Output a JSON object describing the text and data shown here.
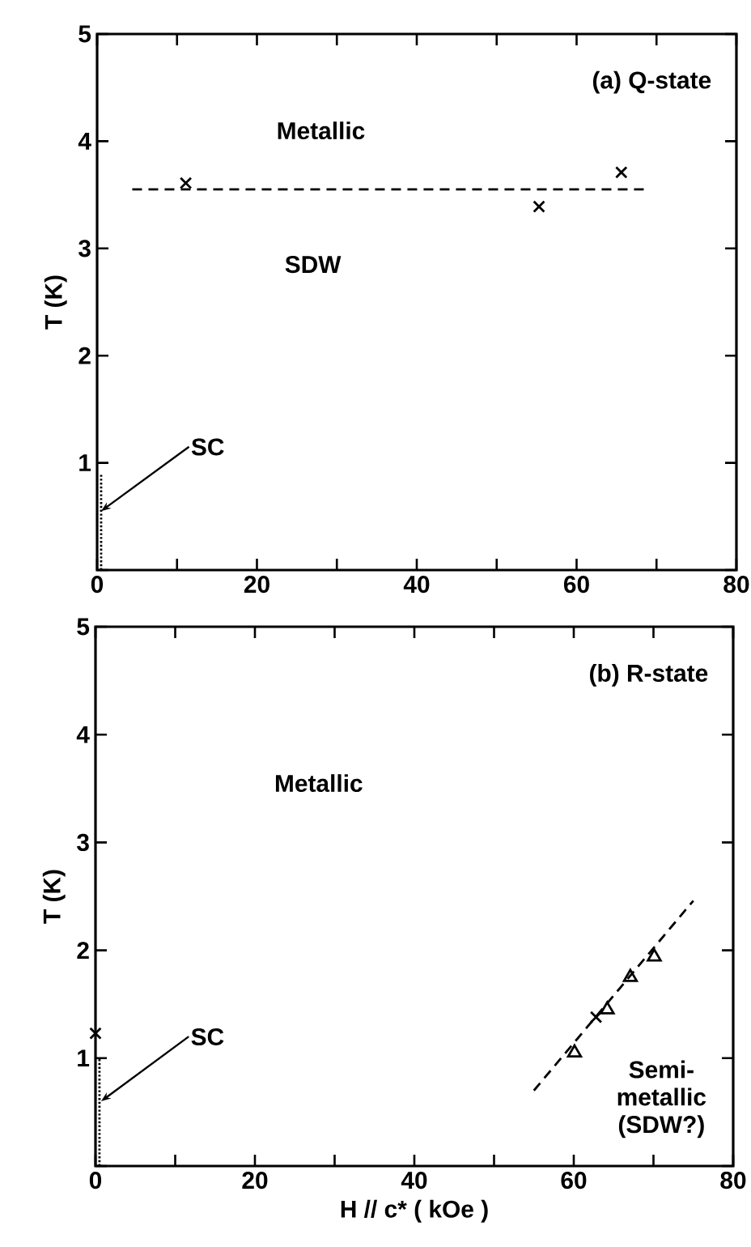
{
  "chart_data": [
    {
      "type": "scatter",
      "title": "(a) Q-state",
      "ylabel": "T (K)",
      "xlim": [
        0,
        80
      ],
      "ylim": [
        0,
        5
      ],
      "xticks": [
        0,
        {
          "value": 10,
          "label": null
        },
        20,
        {
          "value": 30,
          "label": null
        },
        40,
        {
          "value": 50,
          "label": null
        },
        60,
        {
          "value": 70,
          "label": null
        },
        80
      ],
      "yticks": [
        {
          "value": 0,
          "label": null
        },
        1,
        2,
        3,
        4,
        5
      ],
      "series": [
        {
          "marker": "cross",
          "color": "#000000",
          "x": [
            11.1,
            55.3,
            65.6
          ],
          "values": [
            3.61,
            3.39,
            3.71
          ]
        },
        {
          "type": "line",
          "line_style": "dashed",
          "color": "#000000",
          "x": [
            4.4,
            68.8
          ],
          "values": [
            3.55,
            3.55
          ]
        },
        {
          "type": "line",
          "line_style": "dotted",
          "color": "#000000",
          "x": [
            0.5,
            0.5
          ],
          "values": [
            0,
            0.9
          ]
        }
      ],
      "annotations": [
        "Metallic",
        "SDW",
        {
          "text": "SC",
          "x": 0.5,
          "y": 0.55
        }
      ]
    },
    {
      "type": "scatter",
      "title": "(b) R-state",
      "xlabel": "H // c* ( kOe )",
      "ylabel": "T (K)",
      "xlim": [
        0,
        80
      ],
      "ylim": [
        0,
        5
      ],
      "xticks": [
        0,
        {
          "value": 10,
          "label": null
        },
        20,
        {
          "value": 30,
          "label": null
        },
        40,
        {
          "value": 50,
          "label": null
        },
        60,
        {
          "value": 70,
          "label": null
        },
        80
      ],
      "yticks": [
        {
          "value": 0,
          "label": null
        },
        1,
        2,
        3,
        4,
        5
      ],
      "series": [
        {
          "marker": "triangle",
          "color": "#000000",
          "x": [
            60.1,
            64.2,
            67.1,
            70.1
          ],
          "values": [
            1.05,
            1.45,
            1.75,
            1.94
          ]
        },
        {
          "marker": "cross",
          "color": "#000000",
          "x": [
            0,
            62.8
          ],
          "values": [
            1.23,
            1.38
          ]
        },
        {
          "type": "line",
          "line_style": "dashed",
          "color": "#000000",
          "x": [
            55.0,
            75.0
          ],
          "values": [
            0.7,
            2.46
          ]
        },
        {
          "type": "line",
          "line_style": "dotted",
          "color": "#000000",
          "x": [
            0.5,
            0.5
          ],
          "values": [
            0,
            1.0
          ]
        }
      ],
      "annotations": [
        "Metallic",
        "Semi- metallic (SDW?)",
        {
          "text": "SC",
          "x": 0.7,
          "y": 0.6
        }
      ]
    }
  ]
}
